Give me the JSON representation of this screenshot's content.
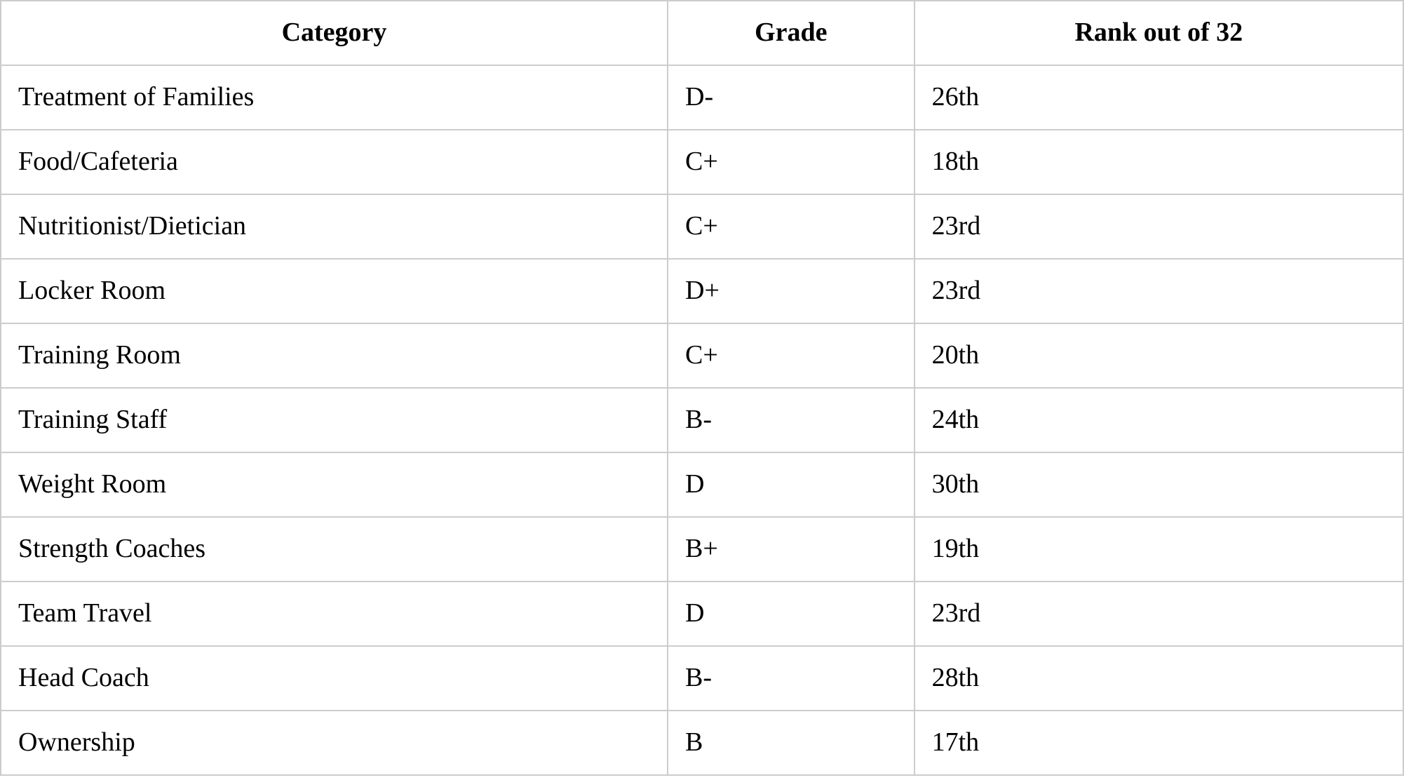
{
  "chart_data": {
    "type": "table",
    "columns": [
      "Category",
      "Grade",
      "Rank out of 32"
    ],
    "rows": [
      {
        "category": "Treatment of Families",
        "grade": "D-",
        "rank": "26th"
      },
      {
        "category": "Food/Cafeteria",
        "grade": "C+",
        "rank": "18th"
      },
      {
        "category": "Nutritionist/Dietician",
        "grade": "C+",
        "rank": "23rd"
      },
      {
        "category": "Locker Room",
        "grade": "D+",
        "rank": "23rd"
      },
      {
        "category": "Training Room",
        "grade": "C+",
        "rank": "20th"
      },
      {
        "category": "Training Staff",
        "grade": "B-",
        "rank": "24th"
      },
      {
        "category": "Weight Room",
        "grade": "D",
        "rank": "30th"
      },
      {
        "category": "Strength Coaches",
        "grade": "B+",
        "rank": "19th"
      },
      {
        "category": "Team Travel",
        "grade": "D",
        "rank": "23rd"
      },
      {
        "category": "Head Coach",
        "grade": "B-",
        "rank": "28th"
      },
      {
        "category": "Ownership",
        "grade": "B",
        "rank": "17th"
      }
    ]
  },
  "colors": {
    "border": "#cccccc",
    "text": "#000000",
    "background": "#ffffff"
  }
}
